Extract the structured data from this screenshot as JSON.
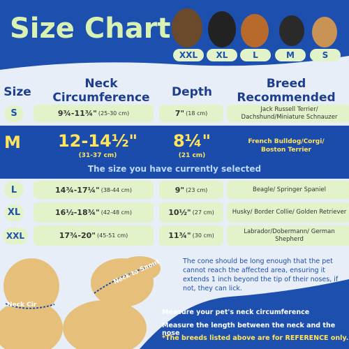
{
  "header": {
    "title": "Size Chart",
    "sizes": [
      "XXL",
      "XL",
      "L",
      "M",
      "S"
    ]
  },
  "table": {
    "columns": [
      "Size",
      "Neck Circumference",
      "Depth",
      "Breed Recommended"
    ],
    "rows": [
      [
        "S",
        "9¾-11¾\"",
        "(25-30 cm)",
        "7\"",
        "(18 cm)",
        "Jack Russell Terrier/ Dachshund/Miniature Schnauzer"
      ],
      [
        "L",
        "14¾-17¼\"",
        "(38-44 cm)",
        "9\"",
        "(23 cm)",
        "Beagle/ Springer Spaniel"
      ],
      [
        "XL",
        "16½-18¾\"",
        "(42-48 cm)",
        "10½\"",
        "(27 cm)",
        "Husky/ Border Collie/ Golden Retriever"
      ],
      [
        "XXL",
        "17¾-20\"",
        "(45-51 cm)",
        "11¾\"",
        "(30 cm)",
        "Labrador/Dobermann/ German Shepherd"
      ]
    ],
    "selected": {
      "size": "M",
      "neck": "12-14½\"",
      "neck_cm": "(31-37 cm)",
      "depth": "8¼\"",
      "depth_cm": "(21 cm)",
      "breed": "French Bulldog/Corgi/ Boston Terrier",
      "note": "The size you have currently selected"
    }
  },
  "images": [
    "Neck Cir",
    "Neck to Snout"
  ],
  "notes": {
    "cone": "The cone should be long enough that the pet cannot reach the affected area, ensuring it extends 1 inch beyond the tip of their noses, if not, they can lick.",
    "steps": [
      "Measure your pet's neck circumference",
      "Measure the length between the neck and the nose",
      "*The breeds listed above are for REFERENCE only."
    ]
  }
}
